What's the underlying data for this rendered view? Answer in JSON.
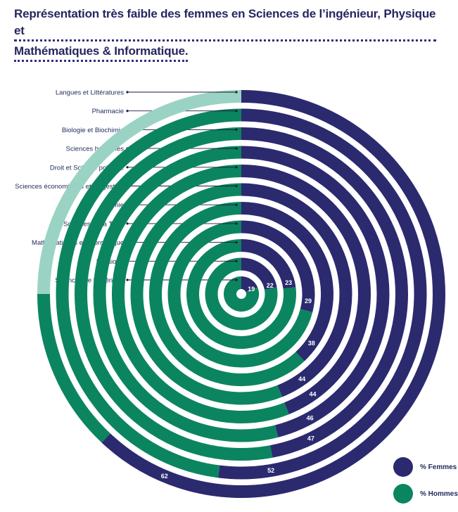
{
  "title": {
    "line1": "Représentation très faible des femmes en Sciences de l’ingénieur, Physique et",
    "line2": "Mathématiques & Informatique."
  },
  "colors": {
    "femmes": "#2b2a6f",
    "hommes": "#0b8560",
    "hommes_light": "#9ad3c4",
    "label_text": "#1f2a5a"
  },
  "legend": {
    "femmes": "% Femmes",
    "hommes": "% Hommes"
  },
  "chart_data": {
    "type": "radial-bar",
    "series": [
      {
        "name": "% Femmes"
      },
      {
        "name": "% Hommes"
      }
    ],
    "categories": [
      "Sciences de l’ingénieur",
      "Physique",
      "Mathématiques et Informatique",
      "Sciences de la Terre",
      "Chimie",
      "Sciences économiques et de gestion",
      "Droit et Science politique",
      "Sciences humaines",
      "Biologie et Biochimie",
      "Pharmacie",
      "Langues et Littératures"
    ],
    "femmes_pct": [
      19,
      22,
      23,
      29,
      38,
      44,
      44,
      46,
      47,
      52,
      62
    ],
    "femmes_labels": [
      "19",
      "22",
      "23",
      "29",
      "38",
      "44",
      "44",
      "46",
      "47",
      "52",
      "62"
    ]
  }
}
